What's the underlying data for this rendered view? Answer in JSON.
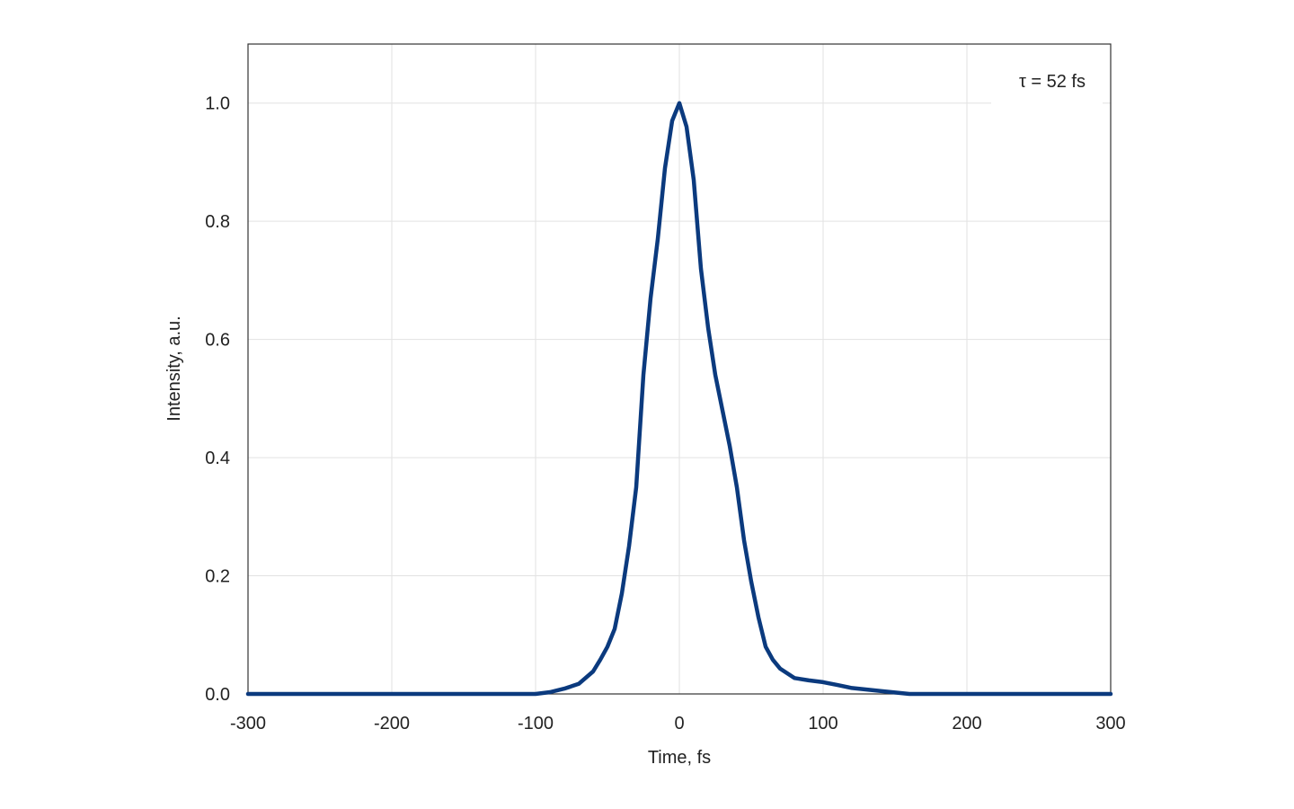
{
  "chart_data": {
    "type": "line",
    "annotation": "τ = 52 fs",
    "x_label": "Time, fs",
    "y_label": "Intensity, a.u.",
    "xlim": [
      -300,
      300
    ],
    "ylim": [
      0,
      1.1
    ],
    "xticks": [
      -300,
      -200,
      -100,
      0,
      100,
      200,
      300
    ],
    "yticks": [
      {
        "value": 0,
        "label": "0.0"
      },
      0.2,
      0.4,
      0.6,
      0.8,
      {
        "value": 1,
        "label": "1.0"
      }
    ],
    "grid": true,
    "series": [
      {
        "color": "#0b3a7e",
        "x": [
          -300,
          -100,
          -90,
          -80,
          -70,
          -60,
          -55,
          -50,
          -45,
          -40,
          -35,
          -30,
          -25,
          -20,
          -15,
          -10,
          -5,
          0,
          5,
          10,
          15,
          20,
          25,
          30,
          35,
          40,
          45,
          50,
          55,
          60,
          65,
          70,
          80,
          90,
          100,
          110,
          120,
          140,
          160,
          300
        ],
        "values": [
          0,
          0,
          0.003,
          0.009,
          0.017,
          0.038,
          0.058,
          0.08,
          0.11,
          0.17,
          0.25,
          0.35,
          0.54,
          0.67,
          0.77,
          0.89,
          0.97,
          1.0,
          0.96,
          0.87,
          0.72,
          0.62,
          0.54,
          0.48,
          0.42,
          0.35,
          0.26,
          0.19,
          0.13,
          0.08,
          0.058,
          0.043,
          0.027,
          0.023,
          0.02,
          0.015,
          0.01,
          0.005,
          0,
          0
        ]
      }
    ]
  }
}
